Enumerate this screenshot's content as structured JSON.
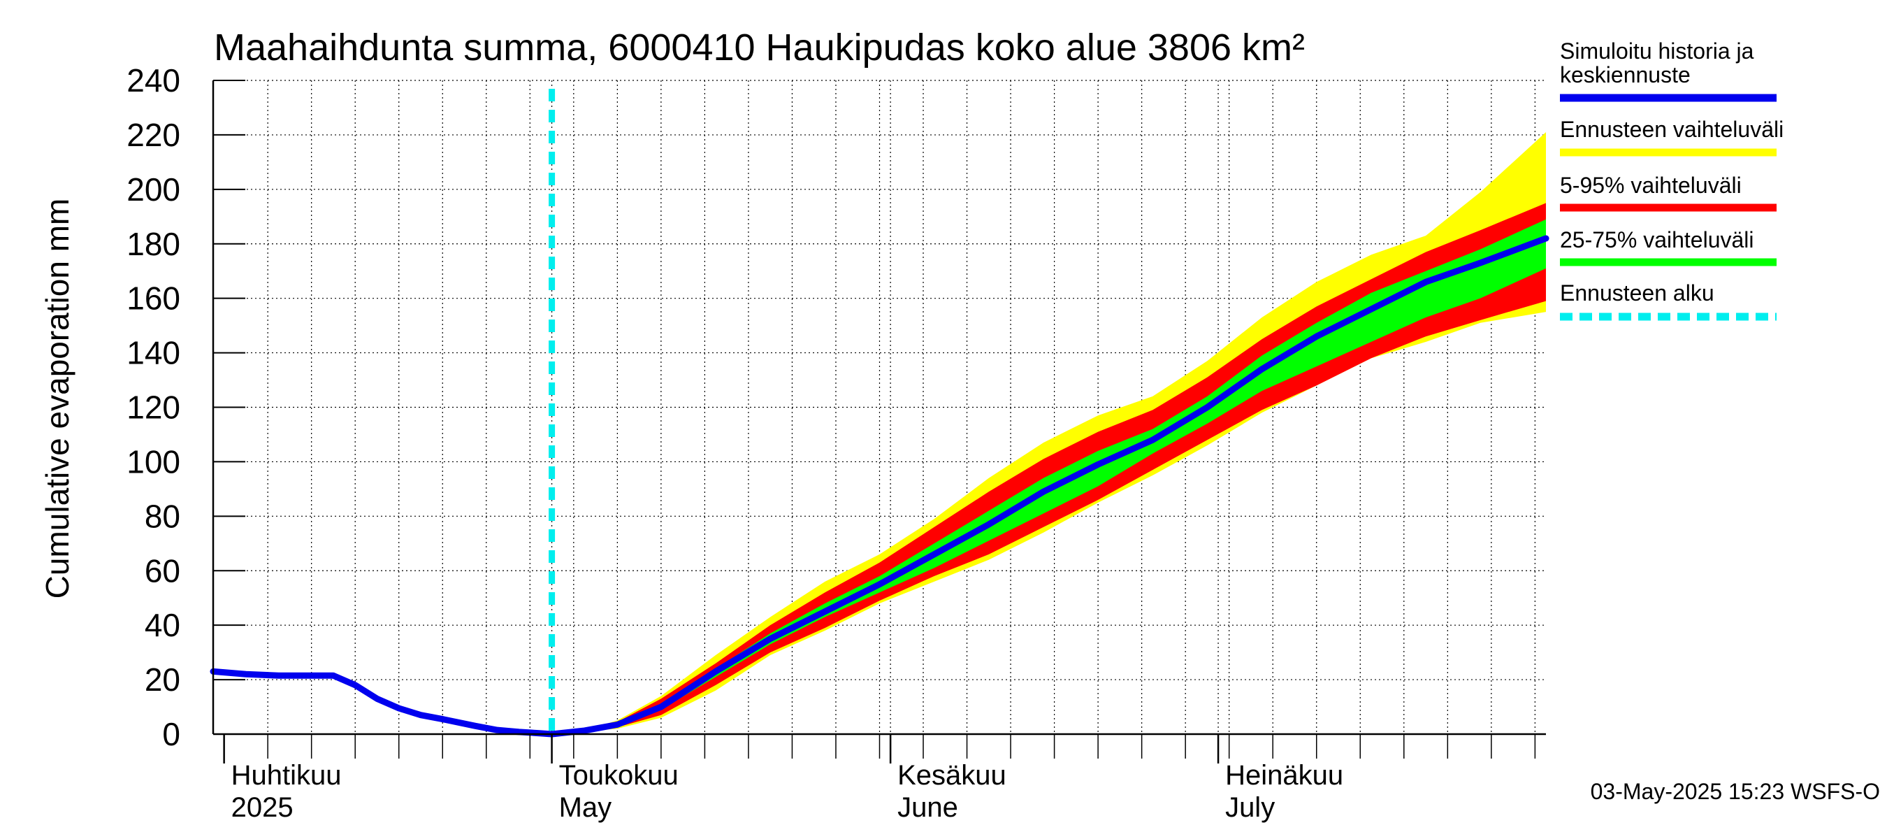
{
  "chart_data": {
    "type": "area",
    "title": "Maahaihdunta summa, 6000410 Haukipudas koko alue 3806 km²",
    "ylabel": "Cumulative evaporation   mm",
    "xlabel": "",
    "ylim": [
      0,
      240
    ],
    "yticks": [
      0,
      20,
      40,
      60,
      80,
      100,
      120,
      140,
      160,
      180,
      200,
      220,
      240
    ],
    "grid": true,
    "xlim_days": [
      -1,
      121
    ],
    "forecast_start_day": 30,
    "month_labels": [
      {
        "day": 0,
        "line1": "Huhtikuu",
        "line2": "2025"
      },
      {
        "day": 30,
        "line1": "Toukokuu",
        "line2": "May"
      },
      {
        "day": 61,
        "line1": "Kesäkuu",
        "line2": "June"
      },
      {
        "day": 91,
        "line1": "Heinäkuu",
        "line2": "July"
      }
    ],
    "history": {
      "name": "Simuloitu historia ja keskiennuste",
      "days": [
        -1,
        2,
        5,
        10,
        12,
        14,
        16,
        18,
        20,
        23,
        25,
        27,
        29,
        30
      ],
      "values": [
        23,
        22,
        21.5,
        21.5,
        18,
        13,
        9.5,
        7,
        5.5,
        3,
        1.5,
        0.8,
        0.3,
        0
      ]
    },
    "forecast_days": [
      30,
      33,
      36,
      40,
      45,
      50,
      55,
      60,
      65,
      70,
      75,
      80,
      85,
      90,
      95,
      100,
      105,
      110,
      115,
      121
    ],
    "series": [
      {
        "name": "Ennusteen vaihteluväli",
        "color": "#ffff00",
        "lower": [
          0,
          1,
          2,
          6,
          16,
          29,
          38,
          48,
          56,
          64,
          74,
          85,
          95,
          106,
          118,
          128,
          138,
          144,
          151,
          155
        ],
        "upper": [
          0,
          1.5,
          5,
          14,
          29,
          43,
          56,
          66,
          79,
          94,
          107,
          117,
          124,
          137,
          153,
          166,
          176,
          183,
          199,
          221
        ]
      },
      {
        "name": "5-95% vaihteluväli",
        "color": "#ff0000",
        "lower": [
          0,
          1,
          2.5,
          7,
          18,
          30,
          39,
          49,
          58,
          66,
          76,
          86,
          97,
          108,
          119,
          128,
          138,
          146,
          152,
          159
        ],
        "upper": [
          0,
          1.5,
          4.5,
          13,
          26,
          40,
          52,
          63,
          76,
          89,
          101,
          111,
          119,
          131,
          145,
          157,
          167,
          177,
          185,
          195
        ]
      },
      {
        "name": "25-75% vaihteluväli",
        "color": "#00ff00",
        "lower": [
          0,
          1.2,
          3,
          9,
          21,
          33,
          43,
          52,
          61,
          71,
          81,
          91,
          103,
          114,
          126,
          135,
          144,
          153,
          160,
          171
        ],
        "upper": [
          0,
          1.4,
          4,
          11,
          24,
          37,
          48,
          58,
          70,
          82,
          94,
          104,
          112,
          124,
          139,
          151,
          162,
          170,
          178,
          189
        ]
      },
      {
        "name": "Simuloitu historia ja keskiennuste",
        "color": "#0000ee",
        "values": [
          0,
          1.3,
          3.5,
          10,
          23,
          35,
          45,
          55,
          66,
          77,
          89,
          99,
          108,
          120,
          134,
          146,
          156,
          166,
          173,
          182
        ]
      }
    ],
    "legend": [
      {
        "label": "Simuloitu historia ja keskiennuste",
        "color": "#0000ee",
        "style": "solid"
      },
      {
        "label": "Ennusteen vaihteluväli",
        "color": "#ffff00",
        "style": "solid"
      },
      {
        "label": "5-95% vaihteluväli",
        "color": "#ff0000",
        "style": "solid"
      },
      {
        "label": "25-75% vaihteluväli",
        "color": "#00ff00",
        "style": "solid"
      },
      {
        "label": "Ennusteen alku",
        "color": "#00eeee",
        "style": "dashed"
      }
    ]
  },
  "footer": "03-May-2025 15:23 WSFS-O"
}
